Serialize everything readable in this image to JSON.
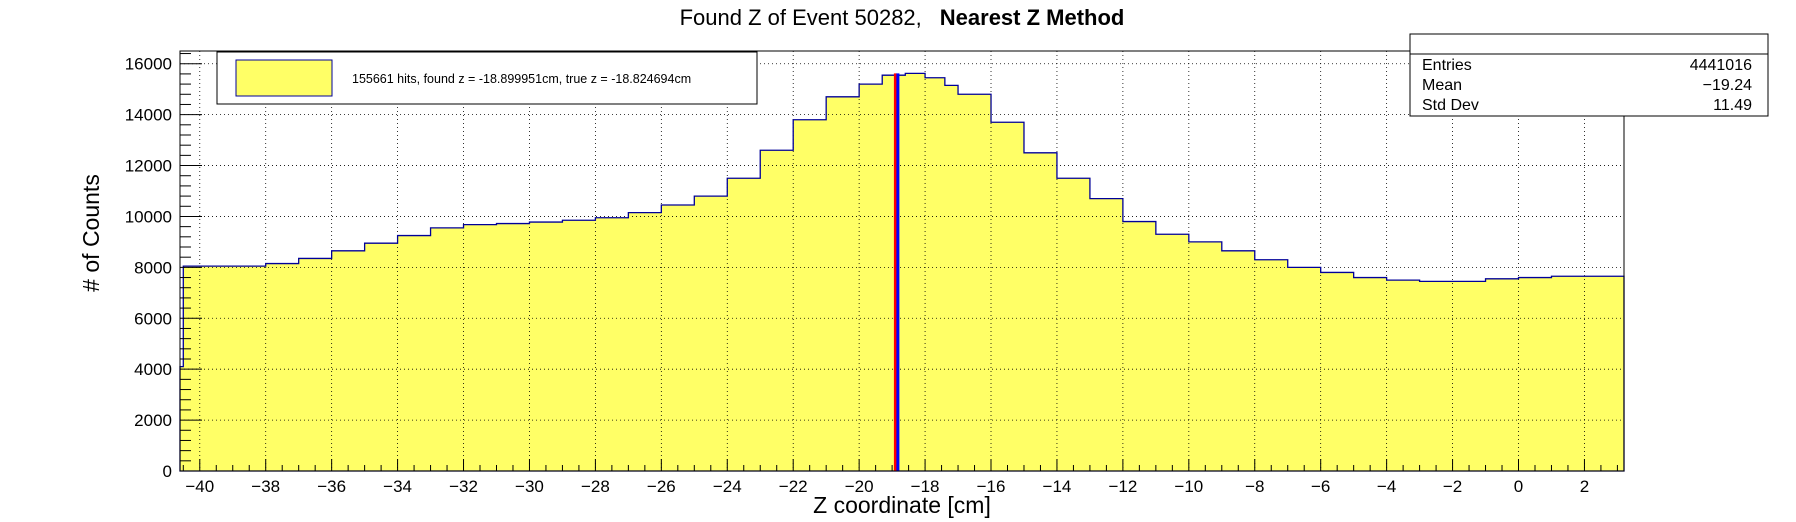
{
  "chart_data": {
    "type": "bar",
    "title": "Found Z of Event 50282,",
    "title_bold": "Nearest Z Method",
    "xlabel": "Z coordinate [cm]",
    "ylabel": "# of Counts",
    "xlim": [
      -40.6,
      3.2
    ],
    "ylim": [
      0,
      16500
    ],
    "x_ticks": [
      -40,
      -38,
      -36,
      -34,
      -32,
      -30,
      -28,
      -26,
      -24,
      -22,
      -20,
      -18,
      -16,
      -14,
      -12,
      -10,
      -8,
      -6,
      -4,
      -2,
      0,
      2
    ],
    "x_tick_labels": [
      "−40",
      "−38",
      "−36",
      "−34",
      "−32",
      "−30",
      "−28",
      "−26",
      "−24",
      "−22",
      "−20",
      "−18",
      "−16",
      "−14",
      "−12",
      "−10",
      "−8",
      "−6",
      "−4",
      "−2",
      "0",
      "2"
    ],
    "y_ticks": [
      0,
      2000,
      4000,
      6000,
      8000,
      10000,
      12000,
      14000,
      16000
    ],
    "y_tick_labels": [
      "0",
      "2000",
      "4000",
      "6000",
      "8000",
      "10000",
      "12000",
      "14000",
      "16000"
    ],
    "grid": true,
    "histogram_outline": [
      [
        -40.6,
        4100
      ],
      [
        -40.5,
        8050
      ],
      [
        -40,
        8050
      ],
      [
        -39,
        8050
      ],
      [
        -38,
        8150
      ],
      [
        -37,
        8350
      ],
      [
        -36,
        8650
      ],
      [
        -35,
        8950
      ],
      [
        -34,
        9250
      ],
      [
        -33,
        9550
      ],
      [
        -32,
        9680
      ],
      [
        -31,
        9720
      ],
      [
        -30,
        9780
      ],
      [
        -29,
        9850
      ],
      [
        -28,
        9950
      ],
      [
        -27,
        10150
      ],
      [
        -26,
        10450
      ],
      [
        -25,
        10800
      ],
      [
        -24,
        11500
      ],
      [
        -23,
        12600
      ],
      [
        -22,
        13800
      ],
      [
        -21,
        14700
      ],
      [
        -20,
        15200
      ],
      [
        -19.3,
        15550
      ],
      [
        -18.6,
        15620
      ],
      [
        -18,
        15450
      ],
      [
        -17.4,
        15150
      ],
      [
        -17,
        14800
      ],
      [
        -16,
        13700
      ],
      [
        -15,
        12500
      ],
      [
        -14,
        11500
      ],
      [
        -13,
        10700
      ],
      [
        -12,
        9800
      ],
      [
        -11,
        9300
      ],
      [
        -10,
        9000
      ],
      [
        -9,
        8650
      ],
      [
        -8,
        8300
      ],
      [
        -7,
        8000
      ],
      [
        -6,
        7800
      ],
      [
        -5,
        7600
      ],
      [
        -4,
        7500
      ],
      [
        -3,
        7450
      ],
      [
        -2,
        7450
      ],
      [
        -1,
        7550
      ],
      [
        0,
        7600
      ],
      [
        1,
        7650
      ],
      [
        2,
        7650
      ],
      [
        3,
        7650
      ],
      [
        3.2,
        3850
      ]
    ],
    "fill_color": "#ffff66",
    "outline_color": "#000099",
    "markers": [
      {
        "name": "found z",
        "x": -18.899951,
        "color": "#ff0000"
      },
      {
        "name": "true z",
        "x": -18.824694,
        "color": "#0000ff"
      }
    ],
    "legend": {
      "placement": "top-left",
      "entry": "155661 hits, found z = -18.899951cm, true z = -18.824694cm"
    },
    "stats": {
      "placement": "top-right",
      "rows": [
        {
          "label": "Entries",
          "value": "4441016"
        },
        {
          "label": "Mean",
          "value": "−19.24"
        },
        {
          "label": "Std Dev",
          "value": "11.49"
        }
      ]
    }
  }
}
